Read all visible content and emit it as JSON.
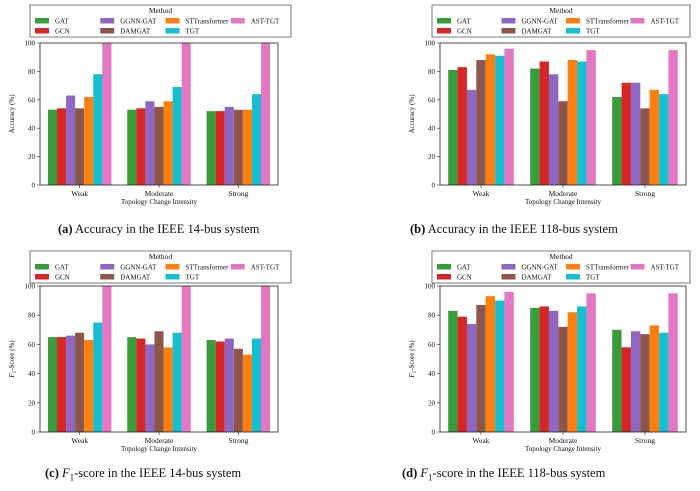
{
  "figure": {
    "method_label": "Method",
    "methods": [
      "GAT",
      "GCN",
      "GGNN-GAT",
      "DAMGAT",
      "STTransformer",
      "TGT",
      "AST-TGT"
    ],
    "colors": {
      "GAT": "#3a9b3a",
      "GCN": "#d62728",
      "GGNN-GAT": "#8f67c2",
      "DAMGAT": "#8c564b",
      "STTransformer": "#ff7f0e",
      "TGT": "#17becf",
      "AST-TGT": "#e377c2"
    }
  },
  "chart_data": [
    {
      "type": "bar",
      "caption_letter": "(a)",
      "caption_text": "Accuracy in the IEEE 14-bus system",
      "xlabel": "Topology Change Intensity",
      "ylabel": "Accuracy (%)",
      "ylim": [
        0,
        100
      ],
      "yticks": [
        "0",
        "20",
        "40",
        "60",
        "80",
        "100"
      ],
      "categories": [
        "Weak",
        "Moderate",
        "Strong"
      ],
      "series": [
        {
          "name": "GAT",
          "values": [
            53,
            53,
            52
          ]
        },
        {
          "name": "GCN",
          "values": [
            54,
            54,
            52
          ]
        },
        {
          "name": "GGNN-GAT",
          "values": [
            63,
            59,
            55
          ]
        },
        {
          "name": "DAMGAT",
          "values": [
            54,
            55,
            53
          ]
        },
        {
          "name": "STTransformer",
          "values": [
            62,
            59,
            53
          ]
        },
        {
          "name": "TGT",
          "values": [
            78,
            69,
            64
          ]
        },
        {
          "name": "AST-TGT",
          "values": [
            100,
            100,
            100
          ]
        }
      ]
    },
    {
      "type": "bar",
      "caption_letter": "(b)",
      "caption_text": "Accuracy in the IEEE 118-bus system",
      "xlabel": "Topology Change Intensity",
      "ylabel": "Accuracy (%)",
      "ylim": [
        0,
        100
      ],
      "yticks": [
        "0",
        "20",
        "40",
        "60",
        "80",
        "100"
      ],
      "categories": [
        "Weak",
        "Moderate",
        "Strong"
      ],
      "series": [
        {
          "name": "GAT",
          "values": [
            81,
            82,
            62
          ]
        },
        {
          "name": "GCN",
          "values": [
            83,
            87,
            72
          ]
        },
        {
          "name": "GGNN-GAT",
          "values": [
            67,
            78,
            72
          ]
        },
        {
          "name": "DAMGAT",
          "values": [
            88,
            59,
            54
          ]
        },
        {
          "name": "STTransformer",
          "values": [
            92,
            88,
            67
          ]
        },
        {
          "name": "TGT",
          "values": [
            91,
            87,
            64
          ]
        },
        {
          "name": "AST-TGT",
          "values": [
            96,
            95,
            95
          ]
        }
      ]
    },
    {
      "type": "bar",
      "caption_letter": "(c)",
      "caption_text": "-score in the IEEE 14-bus system",
      "caption_math": "F",
      "caption_sub": "1",
      "xlabel": "Topology Change Intensity",
      "ylabel": "F",
      "ylabel_sub": "1",
      "ylabel_rest": "-Score (%)",
      "ylim": [
        0,
        100
      ],
      "yticks": [
        "0",
        "20",
        "40",
        "60",
        "80",
        "100"
      ],
      "categories": [
        "Weak",
        "Moderate",
        "Strong"
      ],
      "series": [
        {
          "name": "GAT",
          "values": [
            65,
            65,
            63
          ]
        },
        {
          "name": "GCN",
          "values": [
            65,
            64,
            62
          ]
        },
        {
          "name": "GGNN-GAT",
          "values": [
            66,
            60,
            64
          ]
        },
        {
          "name": "DAMGAT",
          "values": [
            68,
            69,
            57
          ]
        },
        {
          "name": "STTransformer",
          "values": [
            63,
            58,
            53
          ]
        },
        {
          "name": "TGT",
          "values": [
            75,
            68,
            64
          ]
        },
        {
          "name": "AST-TGT",
          "values": [
            100,
            100,
            100
          ]
        }
      ]
    },
    {
      "type": "bar",
      "caption_letter": "(d)",
      "caption_text": "-score in the IEEE 118-bus system",
      "caption_math": "F",
      "caption_sub": "1",
      "xlabel": "Topology Change Intensity",
      "ylabel": "F",
      "ylabel_sub": "1",
      "ylabel_rest": "-Score (%)",
      "ylim": [
        0,
        100
      ],
      "yticks": [
        "0",
        "20",
        "40",
        "60",
        "80",
        "100"
      ],
      "categories": [
        "Weak",
        "Moderate",
        "Strong"
      ],
      "series": [
        {
          "name": "GAT",
          "values": [
            83,
            85,
            70
          ]
        },
        {
          "name": "GCN",
          "values": [
            79,
            86,
            58
          ]
        },
        {
          "name": "GGNN-GAT",
          "values": [
            74,
            83,
            69
          ]
        },
        {
          "name": "DAMGAT",
          "values": [
            87,
            72,
            67
          ]
        },
        {
          "name": "STTransformer",
          "values": [
            93,
            82,
            73
          ]
        },
        {
          "name": "TGT",
          "values": [
            90,
            86,
            68
          ]
        },
        {
          "name": "AST-TGT",
          "values": [
            96,
            95,
            95
          ]
        }
      ]
    }
  ]
}
